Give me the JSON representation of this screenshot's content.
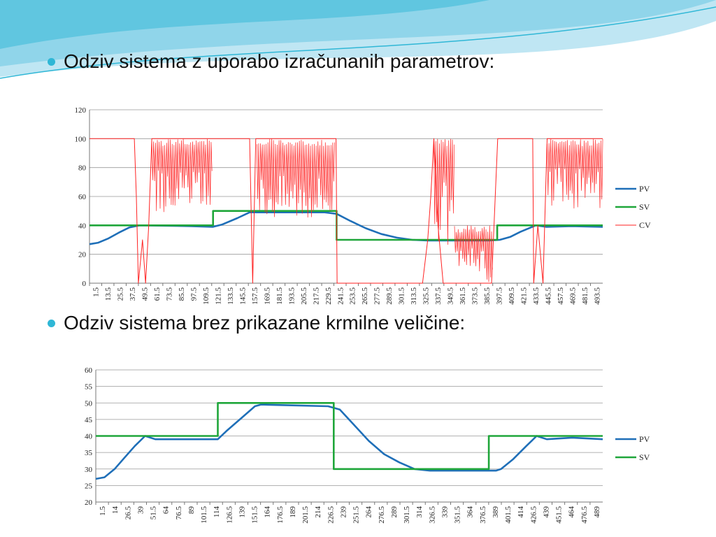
{
  "slide": {
    "bullet1": "Odziv sistema z uporabo izračunanih parametrov:",
    "bullet2": "Odziv sistema brez prikazane krmilne veličine:",
    "bullet_color": "#2fb7d6",
    "header_colors": [
      "#bfe6f3",
      "#7ccde6",
      "#2fb7d6"
    ]
  },
  "chart_data": [
    {
      "type": "line",
      "title": "",
      "xlabel": "",
      "ylabel": "",
      "ylim": [
        0,
        120
      ],
      "yticks": [
        0,
        20,
        40,
        60,
        80,
        100,
        120
      ],
      "xlim": [
        1.5,
        500
      ],
      "xticks": [
        "1.5",
        "13.5",
        "25.5",
        "37.5",
        "49.5",
        "61.5",
        "73.5",
        "85.5",
        "97.5",
        "109.5",
        "121.5",
        "133.5",
        "145.5",
        "157.5",
        "169.5",
        "181.5",
        "193.5",
        "205.5",
        "217.5",
        "229.5",
        "241.5",
        "253.5",
        "265.5",
        "277.5",
        "289.5",
        "301.5",
        "313.5",
        "325.5",
        "337.5",
        "349.5",
        "361.5",
        "373.5",
        "385.5",
        "397.5",
        "409.5",
        "421.5",
        "433.5",
        "445.5",
        "457.5",
        "469.5",
        "481.5",
        "493.5"
      ],
      "grid": true,
      "legend": "right",
      "series": [
        {
          "name": "PV",
          "color": "#1f6fb8",
          "points": [
            [
              1.5,
              27
            ],
            [
              10,
              28
            ],
            [
              20,
              31
            ],
            [
              30,
              35
            ],
            [
              40,
              38.5
            ],
            [
              50,
              40
            ],
            [
              100,
              39.5
            ],
            [
              121.5,
              39
            ],
            [
              130,
              40.5
            ],
            [
              145,
              45
            ],
            [
              157,
              49
            ],
            [
              230,
              49
            ],
            [
              241.5,
              48
            ],
            [
              255,
              43
            ],
            [
              270,
              38
            ],
            [
              285,
              34
            ],
            [
              300,
              31.5
            ],
            [
              315,
              30
            ],
            [
              330,
              29.5
            ],
            [
              390,
              29.5
            ],
            [
              400,
              30
            ],
            [
              410,
              32
            ],
            [
              420,
              35.5
            ],
            [
              430,
              38.5
            ],
            [
              435,
              40
            ],
            [
              445,
              39
            ],
            [
              470,
              39.5
            ],
            [
              500,
              39
            ]
          ]
        },
        {
          "name": "SV",
          "color": "#1fa63a",
          "points": [
            [
              1.5,
              40
            ],
            [
              121.5,
              40
            ],
            [
              121.5,
              50
            ],
            [
              241.5,
              50
            ],
            [
              241.5,
              30
            ],
            [
              397.5,
              30
            ],
            [
              397.5,
              40
            ],
            [
              500,
              40
            ]
          ]
        },
        {
          "name": "CV",
          "color": "#ff2222",
          "points": [
            [
              1.5,
              100
            ],
            [
              45,
              100
            ],
            [
              47,
              60
            ],
            [
              49,
              0
            ],
            [
              53,
              30
            ],
            [
              56,
              0
            ],
            [
              59,
              40
            ],
            [
              62,
              100
            ],
            [
              121.5,
              100
            ],
            [
              157,
              100
            ],
            [
              160,
              0
            ],
            [
              163,
              100
            ],
            [
              241,
              100
            ],
            [
              242,
              0
            ],
            [
              325,
              0
            ],
            [
              330,
              30
            ],
            [
              333,
              60
            ],
            [
              336,
              100
            ],
            [
              340,
              40
            ],
            [
              345,
              0
            ],
            [
              392,
              0
            ],
            [
              398,
              100
            ],
            [
              432,
              100
            ],
            [
              433,
              0
            ],
            [
              437,
              40
            ],
            [
              442,
              0
            ],
            [
              446,
              100
            ],
            [
              500,
              100
            ]
          ],
          "bands": [
            {
              "x0": 62,
              "x1": 121,
              "lo": 48,
              "hi": 100
            },
            {
              "x0": 164,
              "x1": 240,
              "lo": 45,
              "hi": 100
            },
            {
              "x0": 336,
              "x1": 356,
              "lo": 25,
              "hi": 100
            },
            {
              "x0": 356,
              "x1": 393,
              "lo": 0,
              "hi": 40
            },
            {
              "x0": 446,
              "x1": 500,
              "lo": 50,
              "hi": 100
            }
          ]
        }
      ]
    },
    {
      "type": "line",
      "title": "",
      "xlabel": "",
      "ylabel": "",
      "ylim": [
        20,
        60
      ],
      "yticks": [
        20,
        25,
        30,
        35,
        40,
        45,
        50,
        55,
        60
      ],
      "xlim": [
        1.5,
        500
      ],
      "xticks": [
        "1.5",
        "14",
        "26.5",
        "39",
        "51.5",
        "64",
        "76.5",
        "89",
        "101.5",
        "114",
        "126.5",
        "139",
        "151.5",
        "164",
        "176.5",
        "189",
        "201.5",
        "214",
        "226.5",
        "239",
        "251.5",
        "264",
        "276.5",
        "289",
        "301.5",
        "314",
        "326.5",
        "339",
        "351.5",
        "364",
        "376.5",
        "389",
        "401.5",
        "414",
        "426.5",
        "439",
        "451.5",
        "464",
        "476.5",
        "489"
      ],
      "grid": true,
      "legend": "right",
      "series": [
        {
          "name": "PV",
          "color": "#1f6fb8",
          "points": [
            [
              1.5,
              27
            ],
            [
              10,
              27.5
            ],
            [
              20,
              30
            ],
            [
              30,
              33.5
            ],
            [
              40,
              37
            ],
            [
              50,
              40
            ],
            [
              60,
              39
            ],
            [
              121.5,
              39
            ],
            [
              130,
              41.5
            ],
            [
              145,
              45.5
            ],
            [
              158,
              49
            ],
            [
              164,
              49.5
            ],
            [
              230,
              49
            ],
            [
              241.5,
              48
            ],
            [
              255,
              43.5
            ],
            [
              270,
              38.5
            ],
            [
              285,
              34.5
            ],
            [
              300,
              32
            ],
            [
              315,
              30
            ],
            [
              330,
              29.5
            ],
            [
              395,
              29.5
            ],
            [
              400,
              30
            ],
            [
              412,
              33
            ],
            [
              425,
              37
            ],
            [
              435,
              40
            ],
            [
              445,
              39
            ],
            [
              470,
              39.5
            ],
            [
              500,
              39
            ]
          ]
        },
        {
          "name": "SV",
          "color": "#1fa63a",
          "points": [
            [
              1.5,
              40
            ],
            [
              121.5,
              40
            ],
            [
              121.5,
              50
            ],
            [
              235.5,
              50
            ],
            [
              235.5,
              30
            ],
            [
              388,
              30
            ],
            [
              388,
              40
            ],
            [
              500,
              40
            ]
          ]
        }
      ]
    }
  ]
}
